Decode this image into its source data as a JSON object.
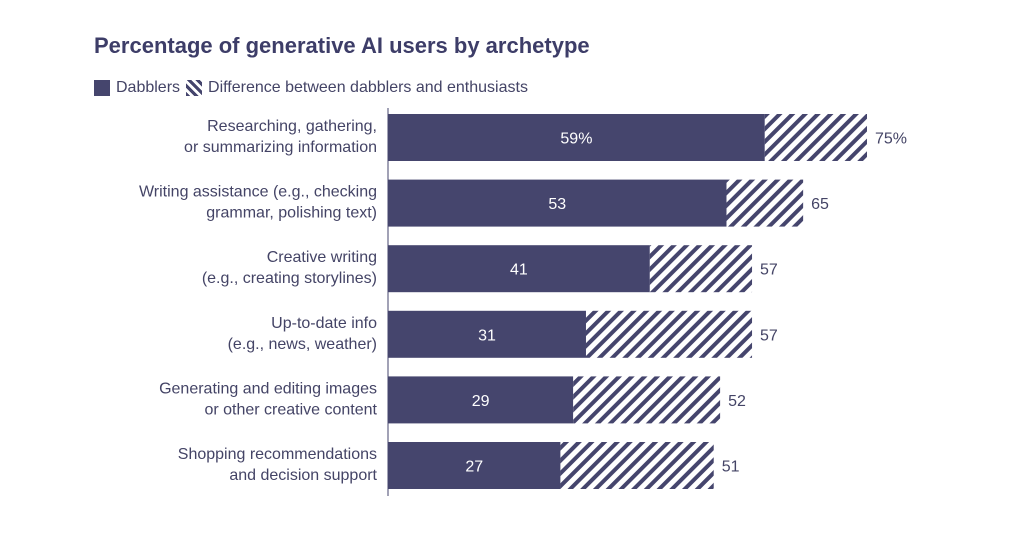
{
  "chart_data": {
    "type": "bar",
    "orientation": "horizontal",
    "stacked": true,
    "title": "Percentage of generative AI users by archetype",
    "legend": [
      {
        "name": "Dabblers",
        "pattern": "solid"
      },
      {
        "name": "Difference between dabblers and enthusiasts",
        "pattern": "hatched"
      }
    ],
    "categories": [
      [
        "Researching, gathering,",
        "or summarizing information"
      ],
      [
        "Writing assistance (e.g., checking",
        "grammar, polishing text)"
      ],
      [
        "Creative writing",
        "(e.g., creating storylines)"
      ],
      [
        "Up-to-date info",
        "(e.g., news, weather)"
      ],
      [
        "Generating and editing images",
        "or other creative content"
      ],
      [
        "Shopping recommendations",
        "and decision support"
      ]
    ],
    "series": [
      {
        "name": "Dabblers",
        "values": [
          59,
          53,
          41,
          31,
          29,
          27
        ]
      },
      {
        "name": "Difference between dabblers and enthusiasts",
        "values": [
          16,
          12,
          16,
          26,
          23,
          24
        ]
      }
    ],
    "dabbler_labels": [
      "59%",
      "53",
      "41",
      "31",
      "29",
      "27"
    ],
    "total_labels": [
      "75%",
      "65",
      "57",
      "57",
      "52",
      "51"
    ],
    "colors": {
      "dabblers": "#45456d",
      "hatch_bg": "#ffffff",
      "text": "#444466"
    }
  }
}
